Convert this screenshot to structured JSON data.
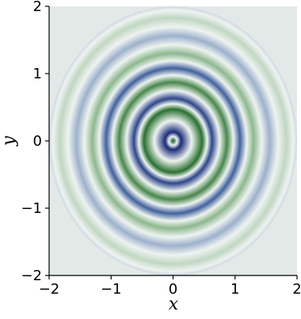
{
  "chart_data": {
    "type": "heatmap",
    "title": "",
    "xlabel": "x",
    "ylabel": "y",
    "xlim": [
      -2,
      2
    ],
    "ylim": [
      -2,
      2
    ],
    "x_ticks": [
      -2,
      -1,
      0,
      1,
      2
    ],
    "y_ticks": [
      -2,
      -1,
      0,
      1,
      2
    ],
    "x_tick_labels": [
      "−2",
      "−1",
      "0",
      "1",
      "2"
    ],
    "y_tick_labels": [
      "−2",
      "−1",
      "0",
      "1",
      "2"
    ],
    "grid": false,
    "pattern": "concentric rings centered at (0, 0), alternating dark blue and dark green, fading toward the edges",
    "background_color": "#e3e9e6",
    "colormap": {
      "low": "#182b78",
      "mid_low": "#4a6fa8",
      "light": "#eef3f0",
      "mid_high": "#6fa56f",
      "high": "#0a5a14"
    },
    "rings": [
      {
        "radius": 0.0,
        "value": 1.0
      },
      {
        "radius": 0.13,
        "value": -1.0
      },
      {
        "radius": 0.47,
        "value": 0.85
      },
      {
        "radius": 0.63,
        "value": -0.8
      },
      {
        "radius": 0.87,
        "value": 0.7
      },
      {
        "radius": 1.08,
        "value": -0.6
      },
      {
        "radius": 1.3,
        "value": 0.38
      },
      {
        "radius": 1.56,
        "value": -0.25
      },
      {
        "radius": 1.83,
        "value": 0.18
      },
      {
        "radius": 2.05,
        "value": -0.1
      }
    ]
  }
}
